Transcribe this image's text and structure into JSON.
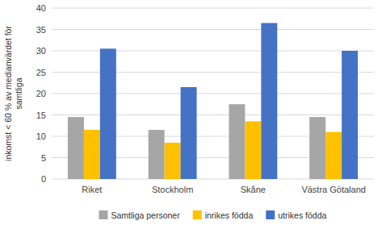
{
  "chart_data": {
    "type": "bar",
    "ylabel": "inkomst < 60 % av medianvärdet för\nsamtliga",
    "categories": [
      "Riket",
      "Stockholm",
      "Skåne",
      "Västra Götaland"
    ],
    "series": [
      {
        "name": "Samtliga personer",
        "color": "#a6a6a6",
        "values": [
          14.5,
          11.5,
          17.5,
          14.5
        ]
      },
      {
        "name": "inrikes födda",
        "color": "#ffc000",
        "values": [
          11.5,
          8.5,
          13.5,
          11.0
        ]
      },
      {
        "name": "utrikes födda",
        "color": "#4472c4",
        "values": [
          30.5,
          21.5,
          36.5,
          30.0
        ]
      }
    ],
    "ylim": [
      0,
      40
    ],
    "yticks": [
      0,
      5,
      10,
      15,
      20,
      25,
      30,
      35,
      40
    ],
    "grid": true,
    "legend": "bottom"
  }
}
